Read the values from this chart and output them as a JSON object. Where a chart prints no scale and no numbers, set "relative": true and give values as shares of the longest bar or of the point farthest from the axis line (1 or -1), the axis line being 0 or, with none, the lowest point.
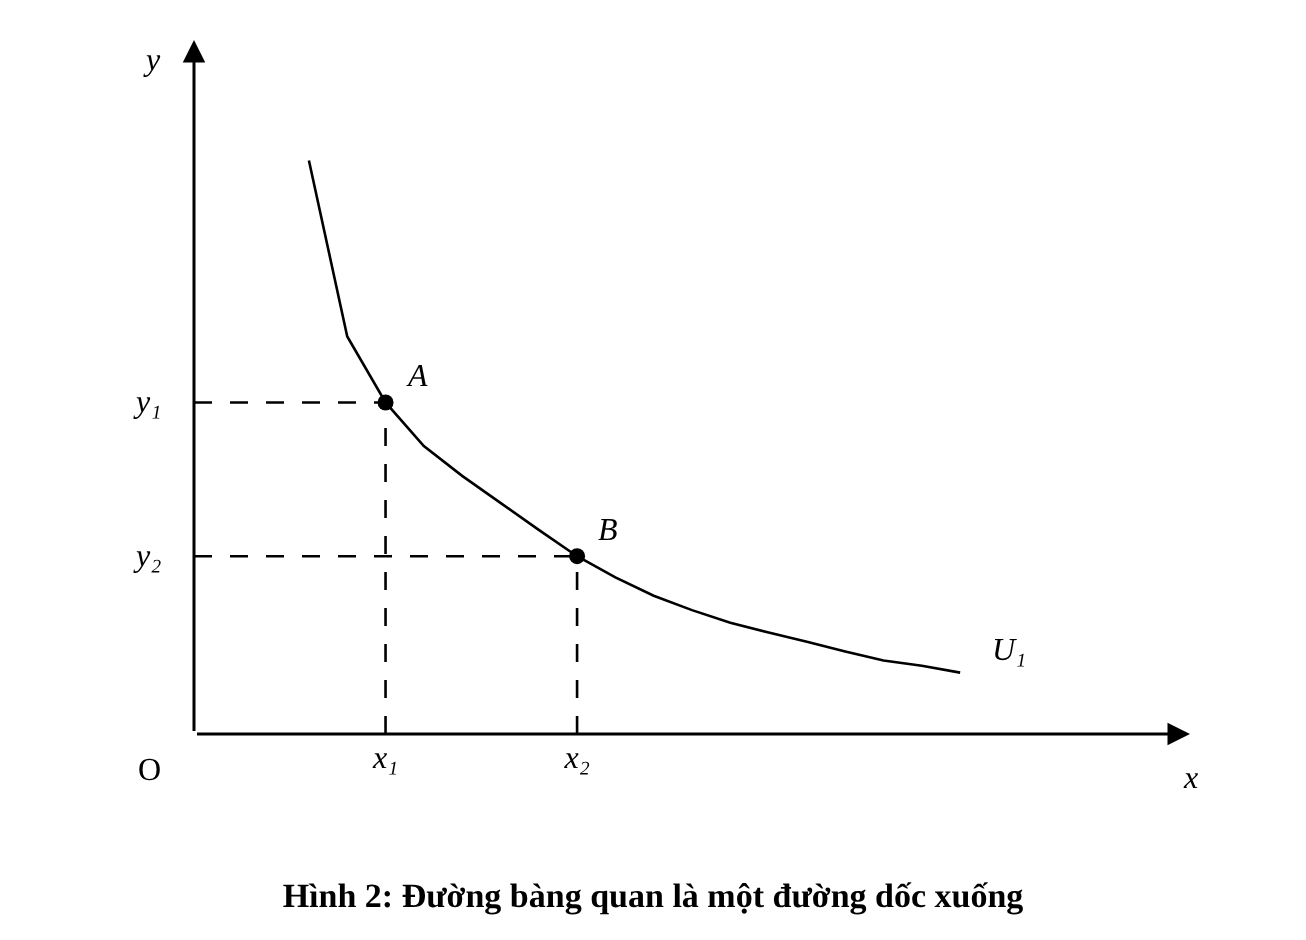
{
  "chart_data": {
    "type": "line",
    "title": "Hình 2: Đường bàng quan là một đường dốc xuống",
    "xlabel": "x",
    "ylabel": "y",
    "relative": true,
    "legend": false,
    "categories": [
      null,
      null,
      null,
      null,
      null,
      "x₁",
      null,
      null,
      null,
      null,
      "x₂",
      null,
      null,
      null,
      null,
      null,
      null,
      null,
      null,
      null,
      null,
      null,
      null,
      null,
      null,
      null,
      null
    ],
    "series": [
      {
        "name": "U₁",
        "color": "#000000",
        "line_style": "solid",
        "marker": "none",
        "values": [
          null,
          null,
          null,
          1.0,
          0.693,
          0.578,
          0.502,
          0.45,
          0.403,
          0.356,
          0.31,
          0.273,
          0.241,
          0.216,
          0.194,
          0.177,
          0.161,
          0.144,
          0.128,
          0.119,
          0.107,
          null,
          null,
          null,
          null,
          null,
          null
        ]
      },
      {
        "name": "y₁",
        "color": "#000000",
        "line_style": "dashed",
        "marker": "none",
        "values": [
          0.578,
          0.578,
          0.578,
          0.578,
          0.578,
          0.578,
          null,
          null,
          null,
          null,
          null,
          null,
          null,
          null,
          null,
          null,
          null,
          null,
          null,
          null,
          null,
          null,
          null,
          null,
          null,
          null,
          null
        ]
      },
      {
        "name": "y₂",
        "color": "#000000",
        "line_style": "dashed",
        "marker": "none",
        "values": [
          0.31,
          0.31,
          0.31,
          0.31,
          0.31,
          0.31,
          0.31,
          0.31,
          0.31,
          0.31,
          0.31,
          null,
          null,
          null,
          null,
          null,
          null,
          null,
          null,
          null,
          null,
          null,
          null,
          null,
          null,
          null,
          null
        ]
      },
      {
        "color": "#000000",
        "line_style": "dashed",
        "marker": "none",
        "x": [
          "x₁",
          "x₁"
        ],
        "values": [
          0,
          0.578
        ]
      },
      {
        "color": "#000000",
        "line_style": "dashed",
        "marker": "none",
        "x": [
          "x₂",
          "x₂"
        ],
        "values": [
          0,
          0.31
        ]
      },
      {
        "type": "scatter",
        "color": "#000000",
        "marker": "circle",
        "x": [
          "x₁",
          "x₂"
        ],
        "values": [
          0.578,
          0.31
        ]
      }
    ],
    "annotations": [
      {
        "text": "A",
        "x": "x₁",
        "y": 0.578
      },
      {
        "text": "B",
        "x": "x₂",
        "y": 0.31
      },
      "O"
    ]
  }
}
